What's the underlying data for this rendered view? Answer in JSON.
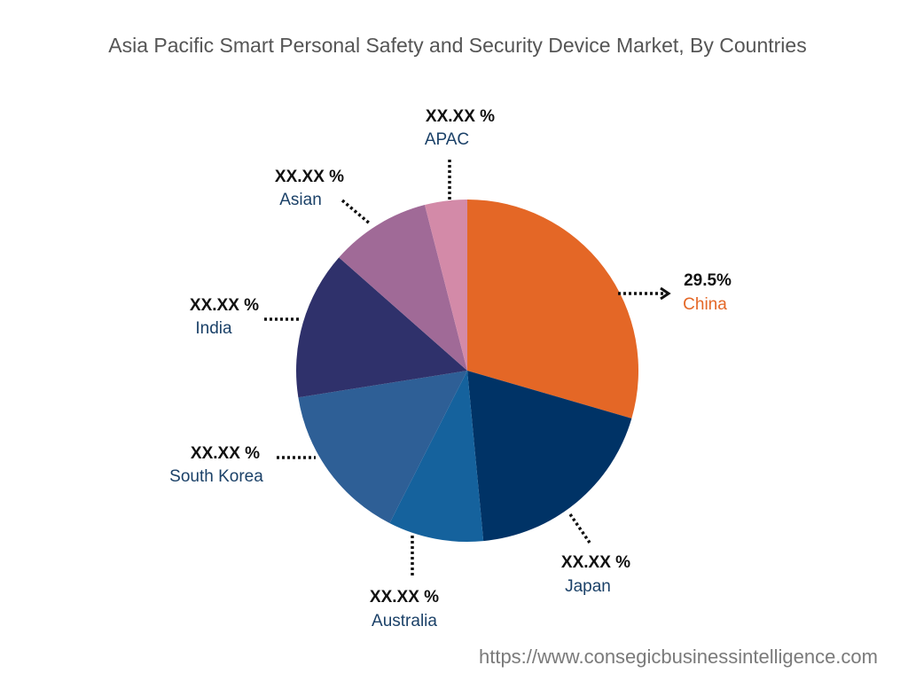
{
  "chart_data": {
    "type": "pie",
    "title": "Asia Pacific Smart Personal Safety and Security Device Market, By Countries",
    "start_angle_deg": 0,
    "direction": "clockwise",
    "slices": [
      {
        "label": "China",
        "value": 29.5,
        "value_label": "29.5%",
        "color": "#E46726",
        "label_color": "#E46726"
      },
      {
        "label": "Japan",
        "value": 19.0,
        "value_label": "XX.XX %",
        "color": "#003366",
        "label_color": "#1B4168"
      },
      {
        "label": "Australia",
        "value": 9.0,
        "value_label": "XX.XX %",
        "color": "#15629D",
        "label_color": "#1B4168"
      },
      {
        "label": "South Korea",
        "value": 15.0,
        "value_label": "XX.XX %",
        "color": "#2E5F96",
        "label_color": "#1B4168"
      },
      {
        "label": "India",
        "value": 14.0,
        "value_label": "XX.XX %",
        "color": "#2F316B",
        "label_color": "#1B4168"
      },
      {
        "label": "Asian",
        "value": 9.5,
        "value_label": "XX.XX %",
        "color": "#A06A97",
        "label_color": "#1B4168"
      },
      {
        "label": "APAC",
        "value": 4.0,
        "value_label": "XX.XX %",
        "color": "#D38AA8",
        "label_color": "#1B4168"
      }
    ]
  },
  "source": "https://www.consegicbusinessintelligence.com"
}
